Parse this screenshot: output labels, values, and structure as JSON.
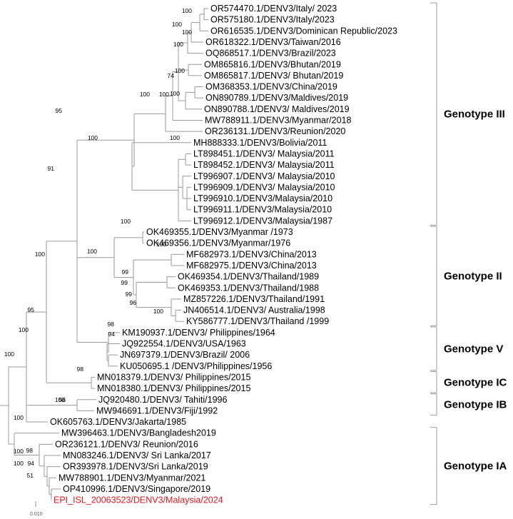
{
  "tree": {
    "leaves": [
      "OR574470.1/DENV3/Italy/ 2023",
      "OR575180.1/DENV3/Italy/2023",
      "OR616535.1/DENV3/Dominican Republic/2023",
      "OR618322.1/DENV3/Taiwan/2016",
      "OQ868517.1/DENV3/Brazil/2023",
      "OM865816.1/DENV3/Bhutan/2019",
      "OM865817.1/DENV3/ Bhutan/2019",
      "OM368353.1/DENV3/China/2019",
      "ON890789.1/DENV3/Maldives/2019",
      "ON890788.1/DENV3/ Maldives/2019",
      "MW788911.1/DENV3/Myanmar/2018",
      "OR236131.1/DENV3/Reunion/2020",
      "MH888333.1/DENV3/Bolivia/2011",
      "LT898451.1/DENV3/ Malaysia/2011",
      "LT898452.1/DENV3/ Malaysia/2011",
      "LT996907.1/DENV3/ Malaysia/2010",
      "LT996909.1/DENV3/ Malaysia/2010",
      "LT996910.1/DENV3/Malaysia/2010",
      "LT996911.1/DENV3/Malaysia/2010",
      "LT996912.1/DENV3/Malaysia/1987",
      "OK469355.1/DENV3/Myanmar /1973",
      "OK469356.1/DENV3/Myanmar/1976",
      "MF682973.1/DENV3/China/2013",
      "MF682975.1/DENV3/China/2013",
      "OK469354.1/DENV3/Thailand/1989",
      "OK469353.1/DENV3/Thailand/1988",
      "MZ857226.1/DENV3/Thailand/1991",
      "JN406514.1/DENV3/ Australia/1998",
      "KY586777.1/DENV3/Thailand /1999",
      "KM190937.1/DENV3/ Philippines/1964",
      "JQ922554.1/DENV3/USA/1963",
      "JN697379.1/DENV3/Brazil/ 2006",
      "KU050695.1 /DENV3/Philippines/1956",
      "MN018379.1/DENV3/ Philippines/2015",
      "MN018380.1/DENV3/ Philippines/2015",
      "JQ920480.1/DENV3/ Tahiti/1996",
      "MW946691.1/DENV3/Fiji/1992",
      "OK605763.1/DENV3/Jakarta/1985",
      "MW396463.1/DENV3/Bangladesh2019",
      "OR236121.1/DENV3/ Reunion/2016",
      "MN083246.1/DENV3/ Sri Lanka/2017",
      "OR393978.1/DENV3/Sri Lanka/2019",
      "MW788901.1/DENV3/Myanmar/2021",
      "OP410996.1/DENV3/Singapore/2019",
      "EPI_ISL_20063523/DENV3/Malaysia/2024"
    ],
    "highlight_color": "#e41a1c",
    "branch_color": "#9a9a9a",
    "bootstrap_labels": [
      "100",
      "100",
      "100",
      "100",
      "100",
      "74",
      "100",
      "95",
      "100",
      "100",
      "100",
      "91",
      "100",
      "100",
      "100",
      "100",
      "99",
      "99",
      "99",
      "96",
      "100",
      "98",
      "94",
      "98",
      "56",
      "100",
      "100",
      "100",
      "95",
      "100",
      "100",
      "100",
      "100",
      "98",
      "94",
      "51"
    ],
    "genotypes": [
      "Genotype III",
      "Genotype II",
      "Genotype V",
      "Genotype IC",
      "Genotype IB",
      "Genotype IA"
    ],
    "scale_label": "0.010"
  }
}
